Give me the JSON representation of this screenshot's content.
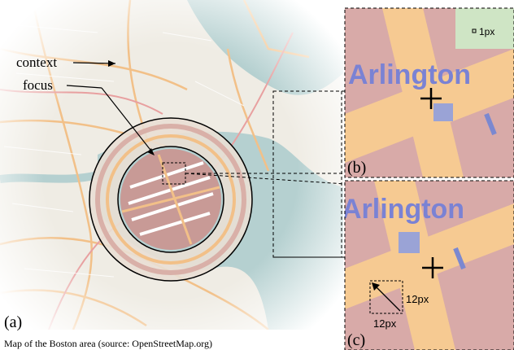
{
  "map": {
    "labels": [
      "context",
      "focus"
    ],
    "panel_label": "(a)",
    "caption": "Map of the Boston area (source: OpenStreetMap.org)"
  },
  "zoom_b": {
    "street": "Arlington",
    "pixel_note": "1px",
    "panel_label": "(b)"
  },
  "zoom_c": {
    "street": "Arlington",
    "width_note": "12px",
    "height_note": "12px",
    "panel_label": "(c)"
  }
}
